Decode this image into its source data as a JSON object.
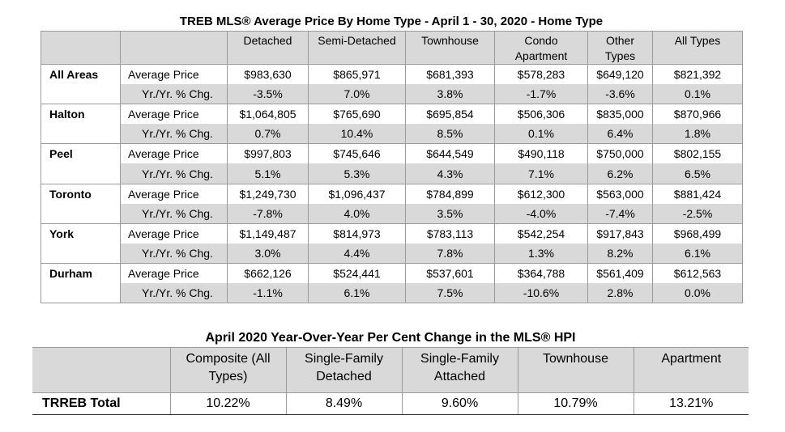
{
  "table1": {
    "title": "TREB MLS® Average Price  By Home Type - April 1 - 30, 2020 - Home Type",
    "headers": [
      "Detached",
      "Semi-Detached",
      "Townhouse",
      "Condo Apartment",
      "Other Types",
      "All Types"
    ],
    "header_lines": {
      "condo_1": "Condo",
      "condo_2": "Apartment",
      "other_1": "Other",
      "other_2": "Types"
    },
    "metric_labels": {
      "avg": "Average Price",
      "chg": "Yr./Yr. % Chg."
    },
    "areas": [
      {
        "name": "All Areas",
        "avg": [
          "$983,630",
          "$865,971",
          "$681,393",
          "$578,283",
          "$649,120",
          "$821,392"
        ],
        "chg": [
          "-3.5%",
          "7.0%",
          "3.8%",
          "-1.7%",
          "-3.6%",
          "0.1%"
        ]
      },
      {
        "name": "Halton",
        "avg": [
          "$1,064,805",
          "$765,690",
          "$695,854",
          "$506,306",
          "$835,000",
          "$870,966"
        ],
        "chg": [
          "0.7%",
          "10.4%",
          "8.5%",
          "0.1%",
          "6.4%",
          "1.8%"
        ]
      },
      {
        "name": "Peel",
        "avg": [
          "$997,803",
          "$745,646",
          "$644,549",
          "$490,118",
          "$750,000",
          "$802,155"
        ],
        "chg": [
          "5.1%",
          "5.3%",
          "4.3%",
          "7.1%",
          "6.2%",
          "6.5%"
        ]
      },
      {
        "name": "Toronto",
        "avg": [
          "$1,249,730",
          "$1,096,437",
          "$784,899",
          "$612,300",
          "$563,000",
          "$881,424"
        ],
        "chg": [
          "-7.8%",
          "4.0%",
          "3.5%",
          "-4.0%",
          "-7.4%",
          "-2.5%"
        ]
      },
      {
        "name": "York",
        "avg": [
          "$1,149,487",
          "$814,973",
          "$783,113",
          "$542,254",
          "$917,843",
          "$968,499"
        ],
        "chg": [
          "3.0%",
          "4.4%",
          "7.8%",
          "1.3%",
          "8.2%",
          "6.1%"
        ]
      },
      {
        "name": "Durham",
        "avg": [
          "$662,126",
          "$524,441",
          "$537,601",
          "$364,788",
          "$561,409",
          "$612,563"
        ],
        "chg": [
          "-1.1%",
          "6.1%",
          "7.5%",
          "-10.6%",
          "2.8%",
          "0.0%"
        ]
      }
    ]
  },
  "table2": {
    "title": "April 2020 Year-Over-Year Per Cent Change in the MLS® HPI",
    "headers": [
      [
        "Composite (All",
        "Types)"
      ],
      [
        "Single-Family",
        "Detached"
      ],
      [
        "Single-Family",
        "Attached"
      ],
      [
        "Townhouse",
        ""
      ],
      [
        "Apartment",
        ""
      ]
    ],
    "row_label": "TRREB Total",
    "values": [
      "10.22%",
      "8.49%",
      "9.60%",
      "10.79%",
      "13.21%"
    ]
  }
}
